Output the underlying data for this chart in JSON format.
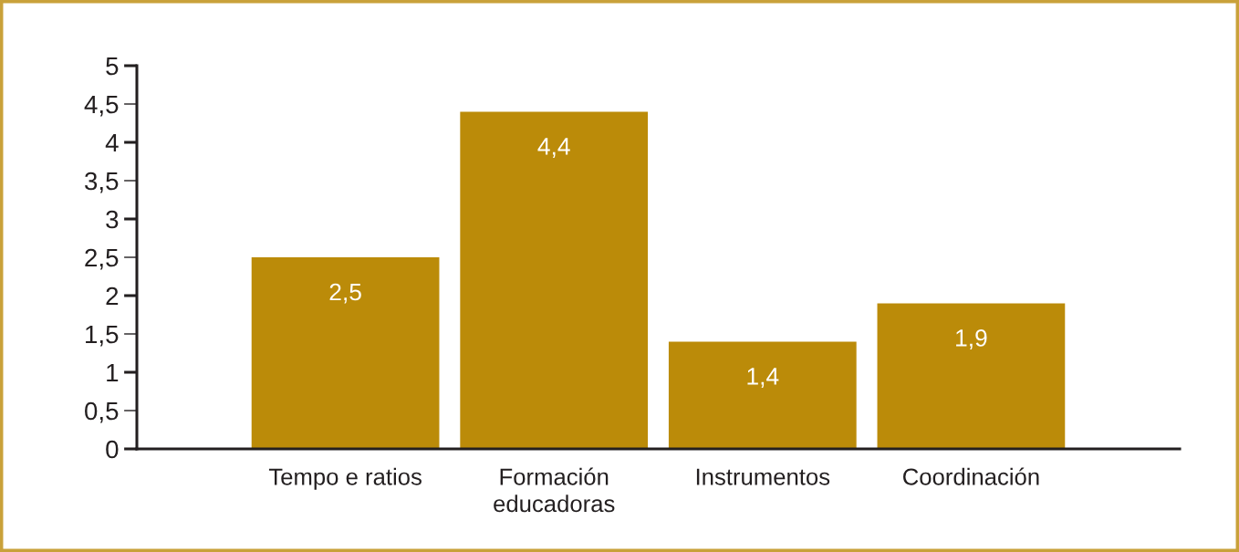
{
  "chart_data": {
    "type": "bar",
    "categories": [
      "Tempo e ratios",
      "Formación\neducadoras",
      "Instrumentos",
      "Coordinación"
    ],
    "values": [
      2.5,
      4.4,
      1.4,
      1.9
    ],
    "value_labels": [
      "2,5",
      "4,4",
      "1,4",
      "1,9"
    ],
    "color": "#bb8b09",
    "ylim": [
      0,
      5
    ],
    "yticks": [
      0,
      {
        "value": 0.5,
        "label": "0,5"
      },
      1,
      {
        "value": 1.5,
        "label": "1,5"
      },
      2,
      {
        "value": 2.5,
        "label": "2,5"
      },
      3,
      {
        "value": 3.5,
        "label": "3,5"
      },
      4,
      {
        "value": 4.5,
        "label": "4,5"
      },
      5
    ]
  }
}
